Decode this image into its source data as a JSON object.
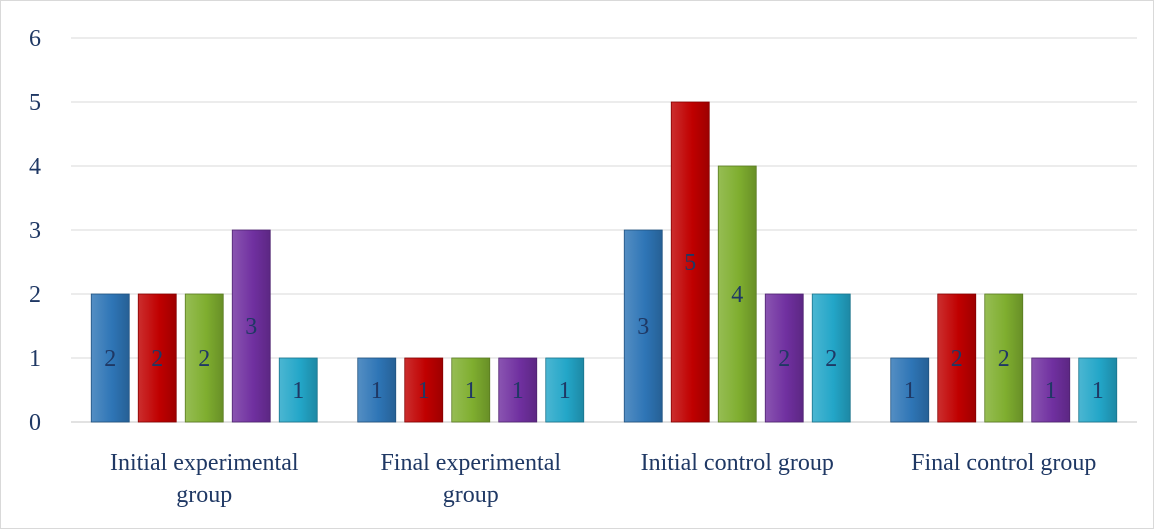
{
  "chart_data": {
    "type": "bar",
    "title": "",
    "xlabel": "",
    "ylabel": "",
    "ylim": [
      0,
      6
    ],
    "yticks": [
      0,
      1,
      2,
      3,
      4,
      5,
      6
    ],
    "grid": true,
    "legend": "none",
    "categories": [
      [
        "Initial experimental",
        "group"
      ],
      [
        "Final experimental",
        "group"
      ],
      [
        "Initial control group"
      ],
      [
        "Final control group"
      ]
    ],
    "series": [
      {
        "color": "#2e75b6",
        "values": [
          2,
          1,
          3,
          1
        ]
      },
      {
        "color": "#c00000",
        "values": [
          2,
          1,
          5,
          2
        ]
      },
      {
        "color": "#7fae2f",
        "values": [
          2,
          1,
          4,
          2
        ]
      },
      {
        "color": "#7030a0",
        "values": [
          3,
          1,
          2,
          1
        ]
      },
      {
        "color": "#23a6c8",
        "values": [
          1,
          1,
          2,
          1
        ]
      }
    ]
  }
}
